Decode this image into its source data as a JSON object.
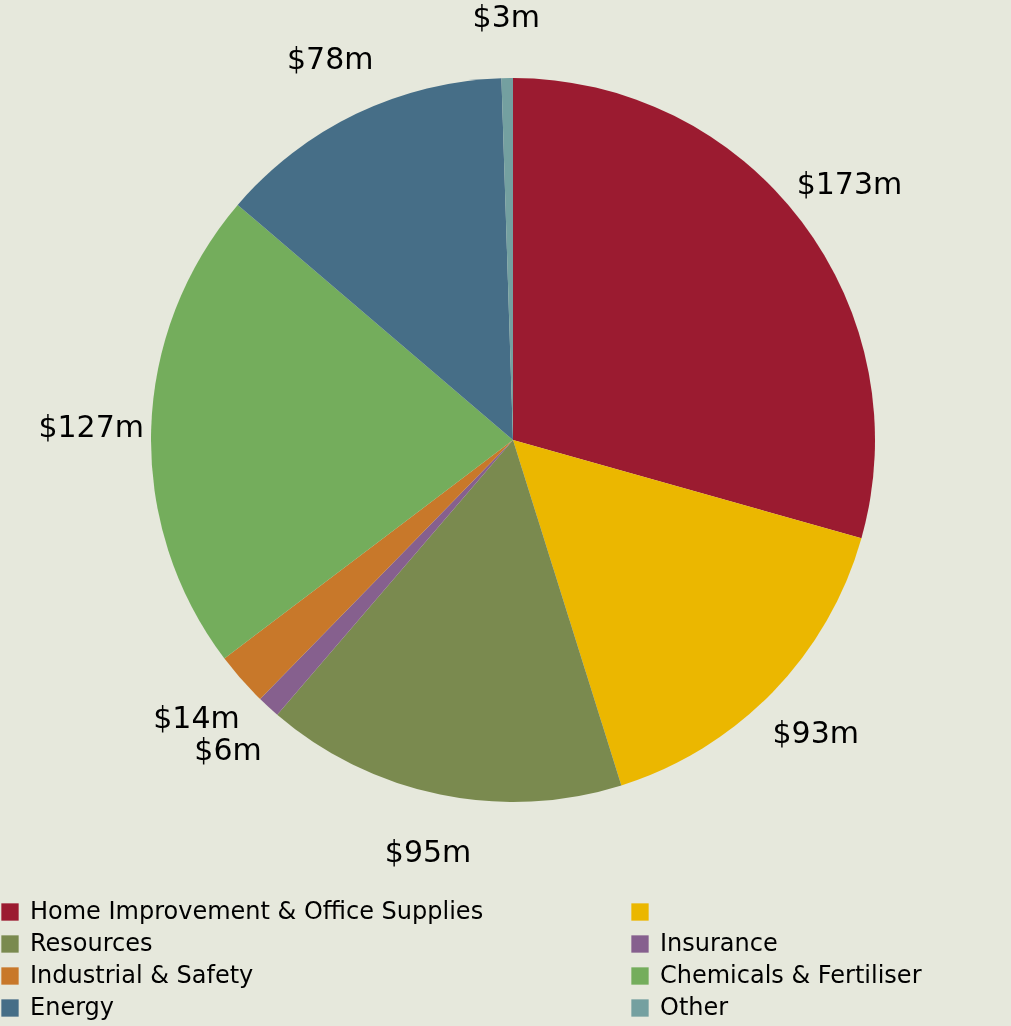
{
  "chart_data": {
    "type": "pie",
    "categories": [
      "Home Improvement & Office Supplies",
      null,
      "Resources",
      "Insurance",
      "Industrial & Safety",
      "Chemicals & Fertiliser",
      "Energy",
      "Other"
    ],
    "values": [
      173,
      93,
      95,
      6,
      14,
      127,
      78,
      3
    ],
    "value_labels": [
      "$173m",
      "$93m",
      "$95m",
      "$6m",
      "$14m",
      "$127m",
      "$78m",
      "$3m"
    ],
    "colors": [
      "#9b1b30",
      "#ebb700",
      "#7a8a4f",
      "#86608e",
      "#c8782a",
      "#74ad5c",
      "#466e87",
      "#74a0a0"
    ],
    "legend": "bottom"
  }
}
